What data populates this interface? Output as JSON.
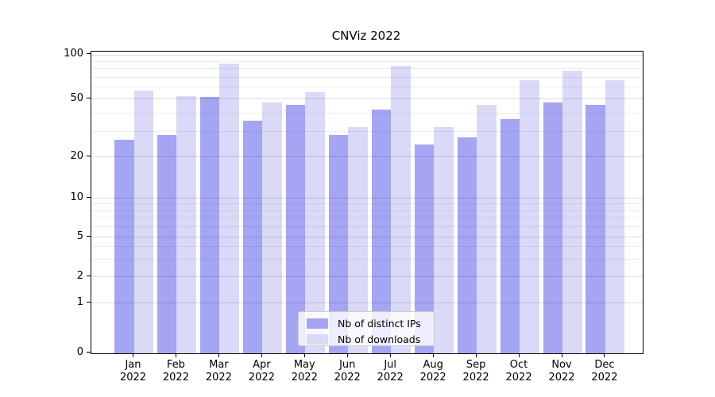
{
  "title": "CNViz 2022",
  "colors": {
    "distinct_ips": "#a5a5f4",
    "downloads": "#dadaf8",
    "spine": "#000000",
    "grid_major": "#d9d9d9",
    "grid_minor": "#ececec"
  },
  "legend": {
    "items": [
      {
        "label": "Nb of distinct IPs",
        "color_key": "distinct_ips"
      },
      {
        "label": "Nb of downloads",
        "color_key": "downloads"
      }
    ]
  },
  "chart_data": {
    "type": "bar",
    "title": "CNViz 2022",
    "categories": [
      "Jan 2022",
      "Feb 2022",
      "Mar 2022",
      "Apr 2022",
      "May 2022",
      "Jun 2022",
      "Jul 2022",
      "Aug 2022",
      "Sep 2022",
      "Oct 2022",
      "Nov 2022",
      "Dec 2022"
    ],
    "x_tick_months": [
      "Jan",
      "Feb",
      "Mar",
      "Apr",
      "May",
      "Jun",
      "Jul",
      "Aug",
      "Sep",
      "Oct",
      "Nov",
      "Dec"
    ],
    "x_tick_year": "2022",
    "series": [
      {
        "name": "Nb of distinct IPs",
        "values": [
          26,
          28,
          51,
          35,
          45,
          28,
          42,
          24,
          27,
          36,
          47,
          45
        ]
      },
      {
        "name": "Nb of downloads",
        "values": [
          57,
          52,
          87,
          47,
          55,
          32,
          83,
          32,
          45,
          67,
          77,
          67
        ]
      }
    ],
    "yscale": "symlog",
    "ylim": [
      0,
      110
    ],
    "ytick_values": [
      0,
      1,
      2,
      5,
      10,
      20,
      50,
      100
    ],
    "ytick_labels": [
      "0",
      "1",
      "2",
      "5",
      "10",
      "20",
      "50",
      "100"
    ],
    "minor_gridline_values": [
      3,
      4,
      6,
      7,
      8,
      9,
      30,
      40,
      60,
      70,
      80,
      90
    ],
    "grid": true,
    "legend_position": "lower center"
  }
}
